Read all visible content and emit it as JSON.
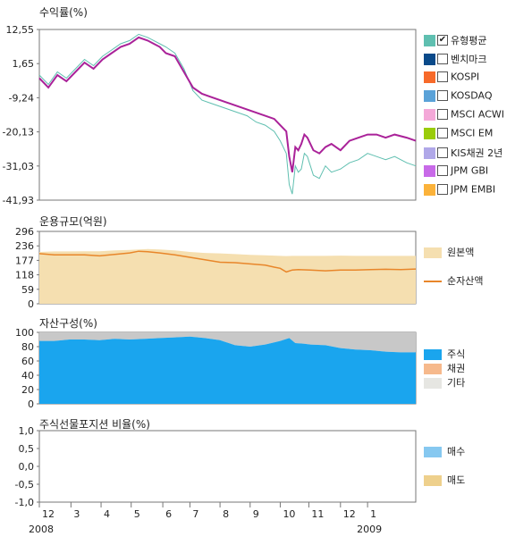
{
  "colors": {
    "fund": "#aa2299",
    "bench": "#5fbfb0",
    "principal": "#f5dfb0",
    "netassets": "#e8862a",
    "stock": "#1aa5ee",
    "bond": "#f6b98c",
    "other": "#c8c8c8",
    "buy": "#86c8f0",
    "sell": "#eed08c"
  },
  "legend_returns": [
    {
      "label": "유형평균",
      "color": "#5fbfb0",
      "checked": true,
      "mark": "✔"
    },
    {
      "label": "벤치마크",
      "color": "#0a4a8a",
      "checked": false,
      "mark": ""
    },
    {
      "label": "KOSPI",
      "color": "#f76a2a",
      "checked": false,
      "mark": ""
    },
    {
      "label": "KOSDAQ",
      "color": "#5aa2d8",
      "checked": false,
      "mark": ""
    },
    {
      "label": "MSCI ACWI",
      "color": "#f4a8d8",
      "checked": false,
      "mark": ""
    },
    {
      "label": "MSCI EM",
      "color": "#9acc0a",
      "checked": false,
      "mark": ""
    },
    {
      "label": "KIS채권 2년",
      "color": "#b0a8e8",
      "checked": false,
      "mark": ""
    },
    {
      "label": "JPM GBI",
      "color": "#c86ae8",
      "checked": false,
      "mark": ""
    },
    {
      "label": "JPM EMBI",
      "color": "#fbb23a",
      "checked": false,
      "mark": ""
    }
  ],
  "legend_size": [
    {
      "label": "원본액",
      "color": "#f5dfb0",
      "kind": "area"
    },
    {
      "label": "순자산액",
      "color": "#e8862a",
      "kind": "line"
    }
  ],
  "legend_assets": [
    {
      "label": "주식",
      "color": "#1aa5ee"
    },
    {
      "label": "채권",
      "color": "#f6b98c"
    },
    {
      "label": "기타",
      "color": "#e6e6e2"
    }
  ],
  "legend_futures": [
    {
      "label": "매수",
      "color": "#86c8f0"
    },
    {
      "label": "매도",
      "color": "#eed08c"
    }
  ],
  "x_axis": {
    "ticks": [
      "12",
      "3",
      "4",
      "5",
      "6",
      "7",
      "8",
      "9",
      "10",
      "11",
      "12",
      "1"
    ],
    "tick_t": [
      0.0,
      0.105,
      0.205,
      0.305,
      0.41,
      0.5,
      0.6,
      0.7,
      0.8,
      0.895,
      1.0,
      1.09
    ],
    "years": [
      "2008",
      "2009"
    ],
    "year_t": [
      0.0,
      1.09
    ]
  },
  "chart_data": [
    {
      "type": "line",
      "title": "수익률(%)",
      "yticks": [
        "12,55",
        "1,65",
        "-9,24",
        "-20,13",
        "-31,03",
        "-41,93"
      ],
      "ylim": [
        -41.93,
        12.55
      ],
      "x": [
        0,
        0.03,
        0.06,
        0.09,
        0.12,
        0.15,
        0.18,
        0.21,
        0.24,
        0.27,
        0.3,
        0.33,
        0.36,
        0.38,
        0.4,
        0.42,
        0.45,
        0.48,
        0.51,
        0.54,
        0.57,
        0.6,
        0.63,
        0.66,
        0.69,
        0.72,
        0.75,
        0.78,
        0.8,
        0.82,
        0.83,
        0.84,
        0.85,
        0.86,
        0.87,
        0.88,
        0.89,
        0.91,
        0.93,
        0.95,
        0.97,
        1.0,
        1.03,
        1.06,
        1.09,
        1.12,
        1.15,
        1.18,
        1.22,
        1.25
      ],
      "series": [
        {
          "name": "",
          "color": "#aa2299",
          "values": [
            -3,
            -6,
            -2,
            -4,
            -1,
            2,
            0,
            3,
            5,
            7,
            8,
            10,
            9,
            8,
            7,
            5,
            4,
            -1,
            -6,
            -8,
            -9,
            -10,
            -11,
            -12,
            -13,
            -14,
            -15,
            -16,
            -18,
            -20,
            -28,
            -33,
            -25,
            -26,
            -24,
            -21,
            -22,
            -26,
            -27,
            -25,
            -24,
            -26,
            -23,
            -22,
            -21,
            -21,
            -22,
            -21,
            -22,
            -23
          ]
        },
        {
          "name": "유형평균",
          "color": "#5fbfb0",
          "values": [
            -2,
            -5,
            -1,
            -3,
            0,
            3,
            1,
            4,
            6,
            8,
            9,
            11,
            10,
            9,
            8,
            7,
            5,
            0,
            -7,
            -10,
            -11,
            -12,
            -13,
            -14,
            -15,
            -17,
            -18,
            -20,
            -23,
            -27,
            -37,
            -40,
            -31,
            -33,
            -32,
            -27,
            -28,
            -34,
            -35,
            -31,
            -33,
            -32,
            -30,
            -29,
            -27,
            -28,
            -29,
            -28,
            -30,
            -31
          ]
        }
      ]
    },
    {
      "type": "area",
      "title": "운용규모(억원)",
      "yticks": [
        "296",
        "236",
        "177",
        "118",
        "59",
        "0"
      ],
      "ylim": [
        0,
        296
      ],
      "x": [
        0,
        0.05,
        0.1,
        0.15,
        0.2,
        0.25,
        0.3,
        0.33,
        0.36,
        0.4,
        0.45,
        0.5,
        0.55,
        0.6,
        0.65,
        0.7,
        0.75,
        0.78,
        0.8,
        0.82,
        0.84,
        0.86,
        0.9,
        0.95,
        1.0,
        1.05,
        1.1,
        1.15,
        1.2,
        1.25
      ],
      "series": [
        {
          "name": "원본액",
          "color": "#f5dfb0",
          "values": [
            212,
            214,
            214,
            215,
            215,
            218,
            220,
            222,
            224,
            222,
            218,
            212,
            208,
            206,
            203,
            200,
            198,
            197,
            196,
            195,
            196,
            196,
            196,
            196,
            197,
            196,
            196,
            196,
            196,
            196
          ]
        },
        {
          "name": "순자산액",
          "color": "#e8862a",
          "values": [
            205,
            200,
            200,
            200,
            196,
            202,
            208,
            215,
            213,
            208,
            200,
            190,
            180,
            170,
            168,
            163,
            158,
            150,
            145,
            130,
            138,
            140,
            138,
            135,
            138,
            138,
            140,
            141,
            140,
            142
          ]
        }
      ]
    },
    {
      "type": "area",
      "title": "자산구성(%)",
      "yticks": [
        "100",
        "80",
        "60",
        "40",
        "20",
        "0"
      ],
      "ylim": [
        0,
        100
      ],
      "x": [
        0,
        0.05,
        0.1,
        0.15,
        0.2,
        0.25,
        0.3,
        0.35,
        0.4,
        0.45,
        0.5,
        0.55,
        0.6,
        0.65,
        0.7,
        0.75,
        0.78,
        0.8,
        0.83,
        0.85,
        0.88,
        0.9,
        0.95,
        1.0,
        1.05,
        1.1,
        1.15,
        1.2,
        1.25
      ],
      "series": [
        {
          "name": "주식",
          "color": "#1aa5ee",
          "values": [
            88,
            88,
            90,
            90,
            89,
            91,
            90,
            91,
            92,
            93,
            94,
            92,
            89,
            82,
            80,
            83,
            86,
            88,
            92,
            85,
            84,
            83,
            82,
            78,
            76,
            75,
            73,
            72,
            72
          ]
        },
        {
          "name": "채권",
          "color": "#f6b98c",
          "values": [
            0,
            0,
            0,
            0,
            0,
            0,
            0,
            0,
            0,
            0,
            0,
            0,
            0,
            0,
            0,
            0,
            0,
            0,
            0,
            0,
            0,
            0,
            0,
            0,
            0,
            0,
            0,
            0,
            0
          ]
        },
        {
          "name": "기타",
          "color": "#c8c8c8",
          "values": [
            12,
            12,
            10,
            10,
            11,
            9,
            10,
            9,
            8,
            7,
            6,
            8,
            11,
            18,
            20,
            17,
            14,
            12,
            8,
            15,
            16,
            17,
            18,
            22,
            24,
            25,
            27,
            28,
            28
          ]
        }
      ]
    },
    {
      "type": "line",
      "title": "주식선물포지션 비율(%)",
      "yticks": [
        "1,0",
        "0,5",
        "0,0",
        "-0,5",
        "-1,0"
      ],
      "ylim": [
        -1,
        1
      ],
      "series": [
        {
          "name": "매수",
          "color": "#86c8f0",
          "values": []
        },
        {
          "name": "매도",
          "color": "#eed08c",
          "values": []
        }
      ]
    }
  ]
}
